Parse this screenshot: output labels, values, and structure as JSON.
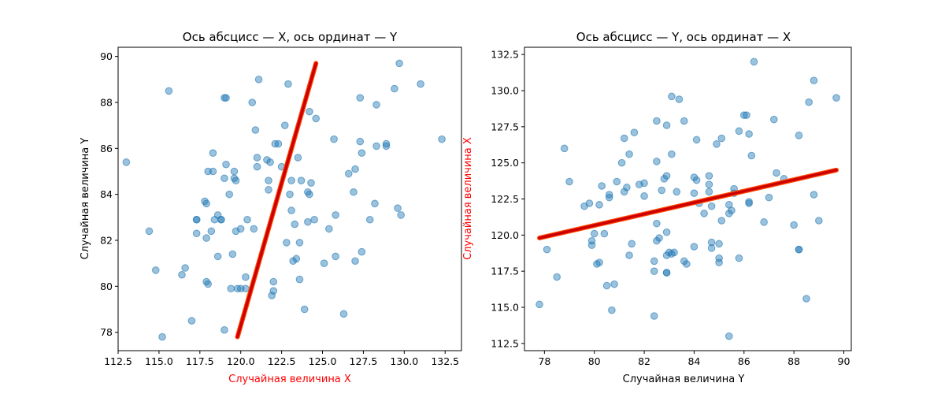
{
  "chart_data": [
    {
      "type": "scatter",
      "title": "Ось абсцисс — X, ось ординат — Y",
      "xlabel": "Случайная величина X",
      "ylabel": "Случайная величина Y",
      "xlabel_color": "#ff0000",
      "ylabel_color": "#000000",
      "xlim": [
        112.5,
        133.5
      ],
      "ylim": [
        77.2,
        90.4
      ],
      "xticks": [
        112.5,
        115.0,
        117.5,
        120.0,
        122.5,
        125.0,
        127.5,
        130.0,
        132.5
      ],
      "yticks": [
        78,
        80,
        82,
        84,
        86,
        88,
        90
      ],
      "point_color": "#1f77b4",
      "line_color": "#cc0000",
      "points": [
        [
          113.0,
          85.4
        ],
        [
          114.4,
          82.4
        ],
        [
          114.8,
          80.7
        ],
        [
          115.2,
          77.8
        ],
        [
          115.6,
          88.5
        ],
        [
          116.4,
          80.5
        ],
        [
          116.6,
          80.8
        ],
        [
          117.0,
          78.5
        ],
        [
          117.3,
          82.9
        ],
        [
          117.3,
          82.9
        ],
        [
          117.3,
          82.3
        ],
        [
          117.8,
          83.7
        ],
        [
          117.9,
          83.6
        ],
        [
          117.9,
          82.1
        ],
        [
          117.9,
          80.2
        ],
        [
          118.0,
          80.1
        ],
        [
          118.0,
          85.0
        ],
        [
          118.2,
          82.4
        ],
        [
          118.3,
          85.0
        ],
        [
          118.3,
          85.8
        ],
        [
          118.4,
          82.9
        ],
        [
          118.6,
          83.1
        ],
        [
          118.6,
          81.3
        ],
        [
          118.8,
          82.9
        ],
        [
          118.8,
          82.9
        ],
        [
          119.0,
          88.2
        ],
        [
          119.0,
          78.1
        ],
        [
          119.0,
          84.7
        ],
        [
          119.1,
          88.2
        ],
        [
          119.1,
          85.3
        ],
        [
          119.3,
          84.0
        ],
        [
          119.4,
          79.9
        ],
        [
          119.5,
          81.4
        ],
        [
          119.6,
          85.0
        ],
        [
          119.6,
          84.7
        ],
        [
          119.7,
          84.6
        ],
        [
          119.7,
          82.4
        ],
        [
          119.8,
          79.9
        ],
        [
          120.0,
          82.5
        ],
        [
          120.0,
          79.9
        ],
        [
          120.3,
          80.4
        ],
        [
          120.3,
          79.9
        ],
        [
          120.4,
          82.9
        ],
        [
          120.7,
          88.0
        ],
        [
          120.8,
          82.5
        ],
        [
          120.9,
          86.8
        ],
        [
          121.0,
          85.6
        ],
        [
          121.0,
          85.2
        ],
        [
          121.1,
          89.0
        ],
        [
          121.6,
          85.5
        ],
        [
          121.7,
          84.6
        ],
        [
          121.7,
          84.2
        ],
        [
          121.8,
          85.4
        ],
        [
          121.9,
          79.6
        ],
        [
          122.0,
          80.2
        ],
        [
          122.0,
          79.8
        ],
        [
          122.1,
          86.2
        ],
        [
          122.3,
          86.2
        ],
        [
          122.5,
          85.2
        ],
        [
          122.7,
          87.0
        ],
        [
          122.8,
          81.9
        ],
        [
          122.9,
          88.8
        ],
        [
          123.0,
          84.0
        ],
        [
          123.1,
          83.3
        ],
        [
          123.1,
          84.6
        ],
        [
          123.2,
          81.1
        ],
        [
          123.3,
          82.7
        ],
        [
          123.4,
          81.2
        ],
        [
          123.5,
          85.6
        ],
        [
          123.6,
          81.9
        ],
        [
          123.6,
          80.3
        ],
        [
          123.7,
          84.6
        ],
        [
          123.9,
          79.0
        ],
        [
          124.1,
          84.1
        ],
        [
          124.1,
          82.8
        ],
        [
          124.2,
          84.0
        ],
        [
          124.2,
          87.6
        ],
        [
          124.3,
          84.5
        ],
        [
          124.5,
          82.9
        ],
        [
          124.6,
          87.3
        ],
        [
          125.1,
          81.0
        ],
        [
          125.4,
          82.5
        ],
        [
          125.7,
          86.4
        ],
        [
          125.8,
          81.3
        ],
        [
          125.8,
          83.1
        ],
        [
          126.3,
          78.8
        ],
        [
          126.6,
          84.9
        ],
        [
          126.9,
          84.1
        ],
        [
          127.0,
          85.1
        ],
        [
          127.0,
          81.1
        ],
        [
          127.3,
          86.3
        ],
        [
          127.3,
          88.2
        ],
        [
          127.4,
          85.8
        ],
        [
          127.4,
          81.5
        ],
        [
          127.9,
          82.9
        ],
        [
          128.2,
          83.6
        ],
        [
          128.3,
          87.9
        ],
        [
          128.3,
          86.1
        ],
        [
          128.9,
          86.2
        ],
        [
          128.9,
          86.1
        ],
        [
          129.4,
          88.6
        ],
        [
          129.6,
          83.4
        ],
        [
          129.7,
          89.7
        ],
        [
          129.8,
          83.1
        ],
        [
          131.0,
          88.8
        ],
        [
          132.3,
          86.4
        ]
      ],
      "regression_line": [
        [
          119.8,
          77.8
        ],
        [
          124.6,
          89.7
        ]
      ]
    },
    {
      "type": "scatter",
      "title": "Ось абсцисс — Y, ось ординат — X",
      "xlabel": "Случайная величина Y",
      "ylabel": "Случайная величина X",
      "xlabel_color": "#000000",
      "ylabel_color": "#ff0000",
      "xlim": [
        77.2,
        90.3
      ],
      "ylim": [
        112.0,
        133.0
      ],
      "xticks": [
        78,
        80,
        82,
        84,
        86,
        88,
        90
      ],
      "yticks": [
        112.5,
        115.0,
        117.5,
        120.0,
        122.5,
        125.0,
        127.5,
        130.0,
        132.5
      ],
      "point_color": "#1f77b4",
      "line_color": "#cc0000",
      "points": [
        [
          77.8,
          115.2
        ],
        [
          78.1,
          119.0
        ],
        [
          78.5,
          117.1
        ],
        [
          78.8,
          126.0
        ],
        [
          79.0,
          123.7
        ],
        [
          79.6,
          122.0
        ],
        [
          79.8,
          122.2
        ],
        [
          79.9,
          119.3
        ],
        [
          79.9,
          119.6
        ],
        [
          80.0,
          120.1
        ],
        [
          80.1,
          118.0
        ],
        [
          80.2,
          122.1
        ],
        [
          80.2,
          118.1
        ],
        [
          80.3,
          123.4
        ],
        [
          80.4,
          120.1
        ],
        [
          80.5,
          116.5
        ],
        [
          80.6,
          122.8
        ],
        [
          80.6,
          122.6
        ],
        [
          80.7,
          114.8
        ],
        [
          80.8,
          116.6
        ],
        [
          80.9,
          123.7
        ],
        [
          81.1,
          125.0
        ],
        [
          81.2,
          126.7
        ],
        [
          81.2,
          123.0
        ],
        [
          81.3,
          123.3
        ],
        [
          81.4,
          118.6
        ],
        [
          81.4,
          125.6
        ],
        [
          81.5,
          119.4
        ],
        [
          81.6,
          127.1
        ],
        [
          81.8,
          123.5
        ],
        [
          82.0,
          123.6
        ],
        [
          82.0,
          122.7
        ],
        [
          82.4,
          117.5
        ],
        [
          82.4,
          118.2
        ],
        [
          82.4,
          114.4
        ],
        [
          82.5,
          127.9
        ],
        [
          82.5,
          119.6
        ],
        [
          82.5,
          125.1
        ],
        [
          82.5,
          120.8
        ],
        [
          82.6,
          119.8
        ],
        [
          82.7,
          123.1
        ],
        [
          82.8,
          123.9
        ],
        [
          82.9,
          124.1
        ],
        [
          82.9,
          127.6
        ],
        [
          82.9,
          120.2
        ],
        [
          82.9,
          118.6
        ],
        [
          82.9,
          117.4
        ],
        [
          82.9,
          117.4
        ],
        [
          83.0,
          118.8
        ],
        [
          83.1,
          118.7
        ],
        [
          83.1,
          129.6
        ],
        [
          83.1,
          125.6
        ],
        [
          83.2,
          118.8
        ],
        [
          83.3,
          123.0
        ],
        [
          83.4,
          129.4
        ],
        [
          83.6,
          118.2
        ],
        [
          83.6,
          127.9
        ],
        [
          83.7,
          118.0
        ],
        [
          84.0,
          124.0
        ],
        [
          84.0,
          119.2
        ],
        [
          84.0,
          122.9
        ],
        [
          84.1,
          126.6
        ],
        [
          84.1,
          123.8
        ],
        [
          84.2,
          122.2
        ],
        [
          84.4,
          121.5
        ],
        [
          84.6,
          124.1
        ],
        [
          84.6,
          123.5
        ],
        [
          84.6,
          123.0
        ],
        [
          84.7,
          122.0
        ],
        [
          84.7,
          119.1
        ],
        [
          84.7,
          119.5
        ],
        [
          84.9,
          126.3
        ],
        [
          85.0,
          118.1
        ],
        [
          85.0,
          118.4
        ],
        [
          85.0,
          119.4
        ],
        [
          85.1,
          126.7
        ],
        [
          85.1,
          121.0
        ],
        [
          85.4,
          121.5
        ],
        [
          85.4,
          122.1
        ],
        [
          85.4,
          113.0
        ],
        [
          85.5,
          121.7
        ],
        [
          85.6,
          122.9
        ],
        [
          85.6,
          123.2
        ],
        [
          85.8,
          118.4
        ],
        [
          85.8,
          127.2
        ],
        [
          86.0,
          128.3
        ],
        [
          86.1,
          128.3
        ],
        [
          86.2,
          122.2
        ],
        [
          86.2,
          122.3
        ],
        [
          86.2,
          127.0
        ],
        [
          86.3,
          125.5
        ],
        [
          86.4,
          132.0
        ],
        [
          86.8,
          120.9
        ],
        [
          87.0,
          122.6
        ],
        [
          87.2,
          128.0
        ],
        [
          87.3,
          124.3
        ],
        [
          87.6,
          123.9
        ],
        [
          88.0,
          120.7
        ],
        [
          88.2,
          126.9
        ],
        [
          88.2,
          119.0
        ],
        [
          88.2,
          119.0
        ],
        [
          88.5,
          115.6
        ],
        [
          88.6,
          129.2
        ],
        [
          88.8,
          130.7
        ],
        [
          88.8,
          122.8
        ],
        [
          89.0,
          121.0
        ],
        [
          89.7,
          129.5
        ]
      ],
      "regression_line": [
        [
          77.8,
          119.8
        ],
        [
          89.7,
          124.5
        ]
      ]
    }
  ]
}
